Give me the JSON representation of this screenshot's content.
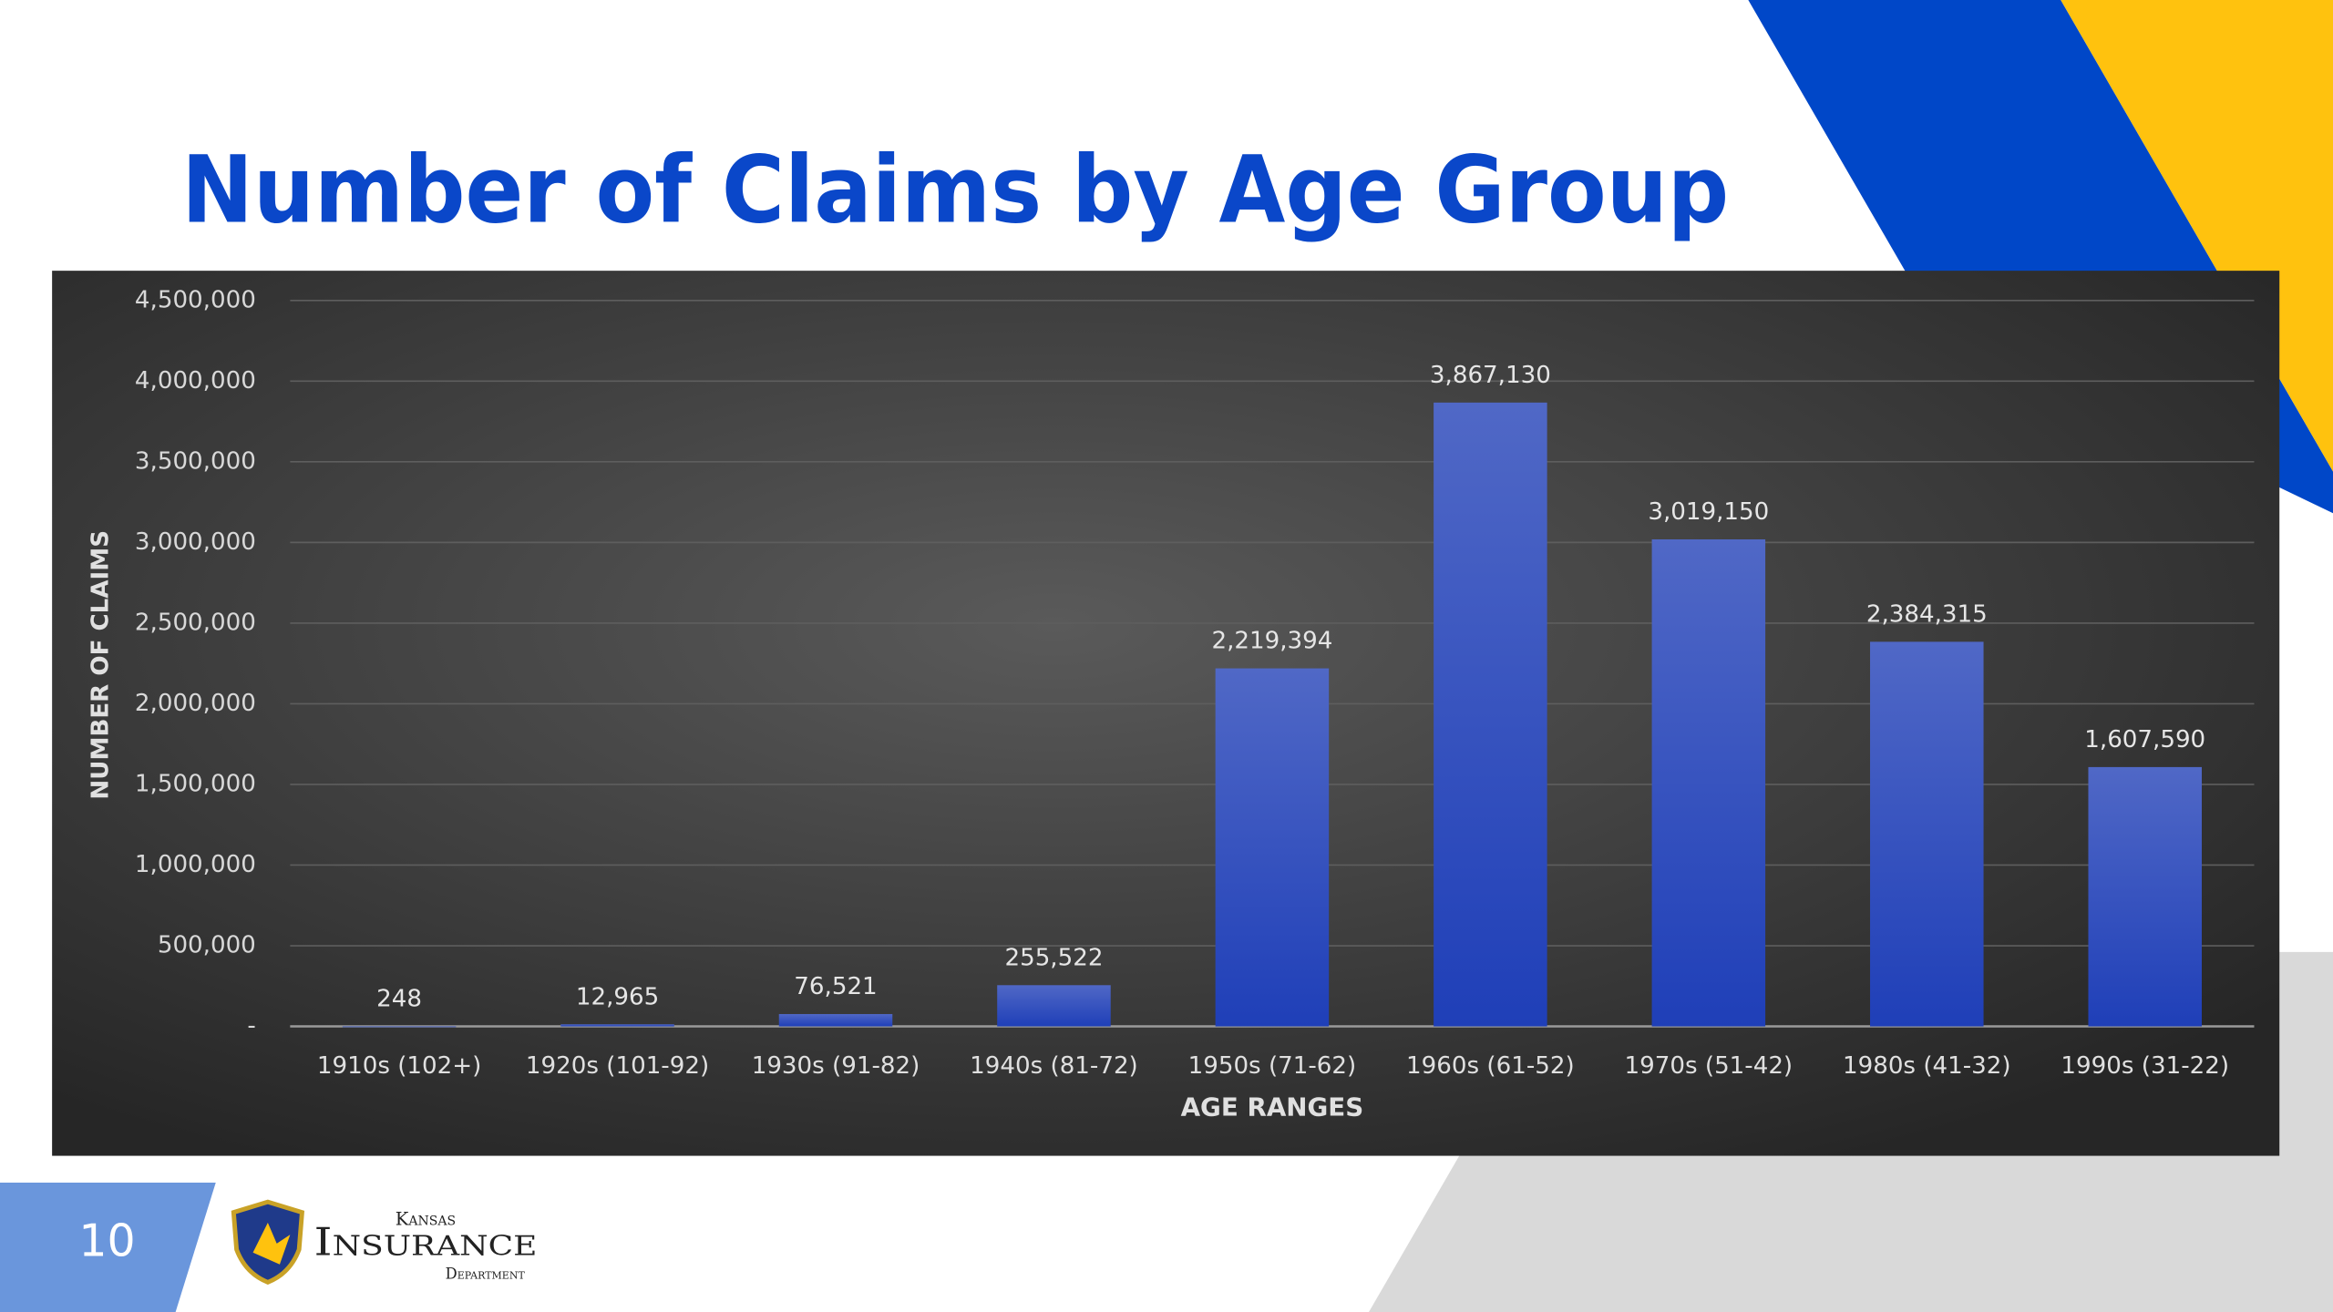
{
  "chart_data": {
    "type": "bar",
    "title": "Number of Claims by Age Group",
    "x_label": "AGE RANGES",
    "y_label": "NUMBER OF CLAIMS",
    "categories": [
      "1910s (102+)",
      "1920s (101-92)",
      "1930s (91-82)",
      "1940s (81-72)",
      "1950s (71-62)",
      "1960s (61-52)",
      "1970s (51-42)",
      "1980s (41-32)",
      "1990s (31-22)"
    ],
    "values": [
      248,
      12965,
      76521,
      255522,
      2219394,
      3867130,
      3019150,
      2384315,
      1607590
    ],
    "value_labels": [
      "248",
      "12,965",
      "76,521",
      "255,522",
      "2,219,394",
      "3,867,130",
      "3,019,150",
      "2,384,315",
      "1,607,590"
    ],
    "color": "#3450c0",
    "ylim": [
      0,
      4500000
    ],
    "yticks": [
      {
        "value": 0,
        "label": "-"
      },
      {
        "value": 500000,
        "label": "500,000"
      },
      {
        "value": 1000000,
        "label": "1,000,000"
      },
      {
        "value": 1500000,
        "label": "1,500,000"
      },
      {
        "value": 2000000,
        "label": "2,000,000"
      },
      {
        "value": 2500000,
        "label": "2,500,000"
      },
      {
        "value": 3000000,
        "label": "3,000,000"
      },
      {
        "value": 3500000,
        "label": "3,500,000"
      },
      {
        "value": 4000000,
        "label": "4,000,000"
      },
      {
        "value": 4500000,
        "label": "4,500,000"
      }
    ],
    "grid": true
  },
  "slide": {
    "page_number": "10",
    "logo": {
      "top": "Kansas",
      "main": "Insurance",
      "bottom": "Department"
    }
  }
}
